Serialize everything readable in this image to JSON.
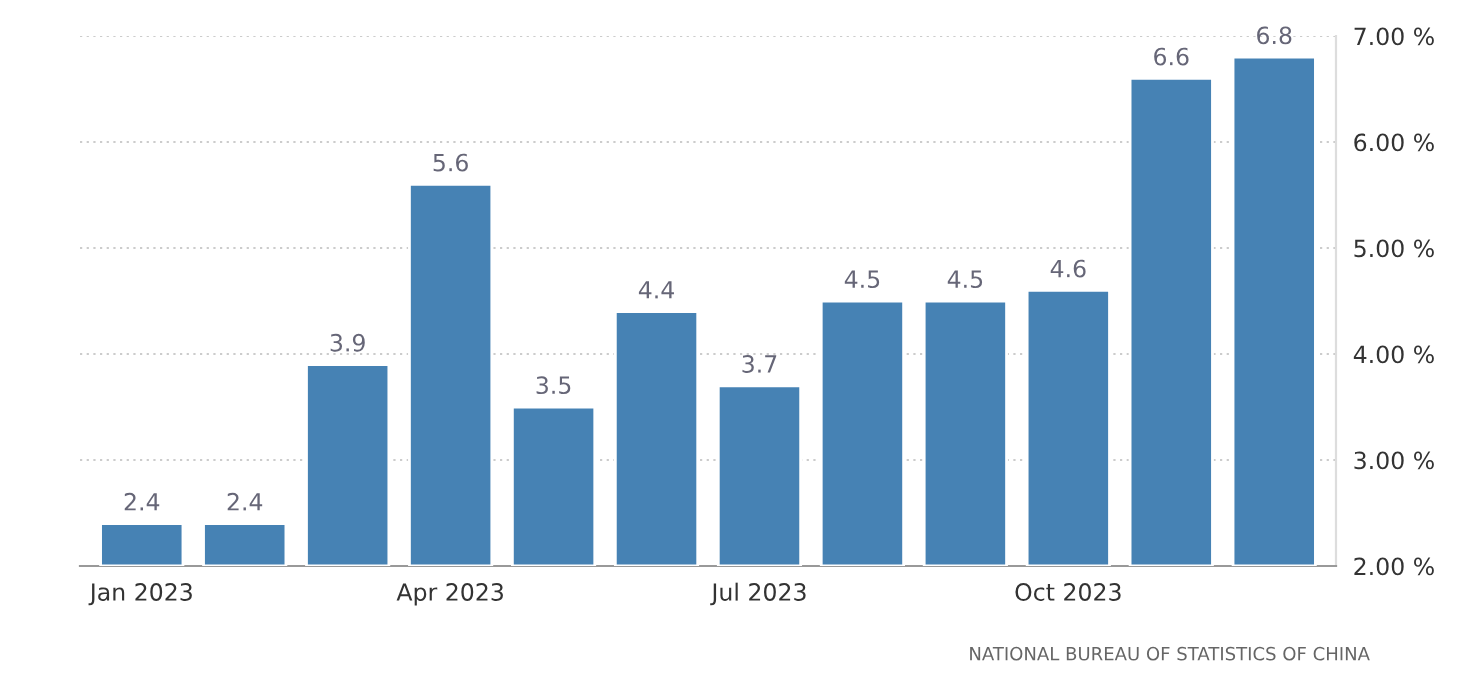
{
  "chart_data": {
    "type": "bar",
    "categories": [
      "Jan 2023",
      null,
      null,
      "Apr 2023",
      null,
      null,
      "Jul 2023",
      null,
      null,
      "Oct 2023",
      null,
      null
    ],
    "values": [
      2.4,
      2.4,
      3.9,
      5.6,
      3.5,
      4.4,
      3.7,
      4.5,
      4.5,
      4.6,
      6.6,
      6.8
    ],
    "color": "#4682b4",
    "ylim": [
      2,
      7
    ],
    "yticks": [
      {
        "value": 2,
        "label": "2.00 %"
      },
      {
        "value": 3,
        "label": "3.00 %"
      },
      {
        "value": 4,
        "label": "4.00 %"
      },
      {
        "value": 5,
        "label": "5.00 %"
      },
      {
        "value": 6,
        "label": "6.00 %"
      },
      {
        "value": 7,
        "label": "7.00 %"
      }
    ],
    "grid": "y",
    "data_labels": true,
    "annotations": [
      "NATIONAL BUREAU OF STATISTICS OF CHINA"
    ]
  }
}
